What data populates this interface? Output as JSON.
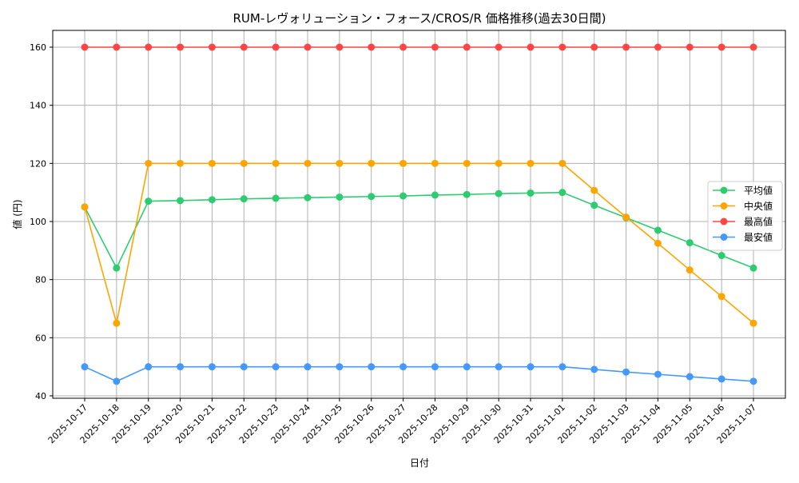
{
  "chart_data": {
    "type": "line",
    "title": "RUM-レヴォリューション・フォース/CROS/R 価格推移(過去30日間)",
    "xlabel": "日付",
    "ylabel": "値 (円)",
    "ylim": [
      40,
      160
    ],
    "yticks": [
      40,
      60,
      80,
      100,
      120,
      140,
      160
    ],
    "grid": true,
    "legend_position": "center-right",
    "x": [
      "2025-10-17",
      "2025-10-18",
      "2025-10-19",
      "2025-10-20",
      "2025-10-21",
      "2025-10-22",
      "2025-10-23",
      "2025-10-24",
      "2025-10-25",
      "2025-10-26",
      "2025-10-27",
      "2025-10-28",
      "2025-10-29",
      "2025-10-30",
      "2025-10-31",
      "2025-11-01",
      "2025-11-02",
      "2025-11-03",
      "2025-11-04",
      "2025-11-05",
      "2025-11-06",
      "2025-11-07"
    ],
    "series": [
      {
        "name": "平均値",
        "color": "#2ecc71",
        "values": [
          105,
          84,
          107,
          107.2,
          107.5,
          107.8,
          108,
          108.2,
          108.4,
          108.6,
          108.8,
          109.1,
          109.3,
          109.6,
          109.8,
          110,
          105.6,
          101.3,
          97,
          92.7,
          88.3,
          84
        ]
      },
      {
        "name": "中央値",
        "color": "#ffa500",
        "values": [
          105,
          65,
          120,
          120,
          120,
          120,
          120,
          120,
          120,
          120,
          120,
          120,
          120,
          120,
          120,
          120,
          110.7,
          101.5,
          92.5,
          83.3,
          74.2,
          65
        ]
      },
      {
        "name": "最高値",
        "color": "#ff4444",
        "values": [
          160,
          160,
          160,
          160,
          160,
          160,
          160,
          160,
          160,
          160,
          160,
          160,
          160,
          160,
          160,
          160,
          160,
          160,
          160,
          160,
          160,
          160
        ]
      },
      {
        "name": "最安値",
        "color": "#4499ff",
        "values": [
          50,
          45,
          50,
          50,
          50,
          50,
          50,
          50,
          50,
          50,
          50,
          50,
          50,
          50,
          50,
          50,
          49.1,
          48.2,
          47.4,
          46.6,
          45.8,
          45
        ]
      }
    ]
  }
}
